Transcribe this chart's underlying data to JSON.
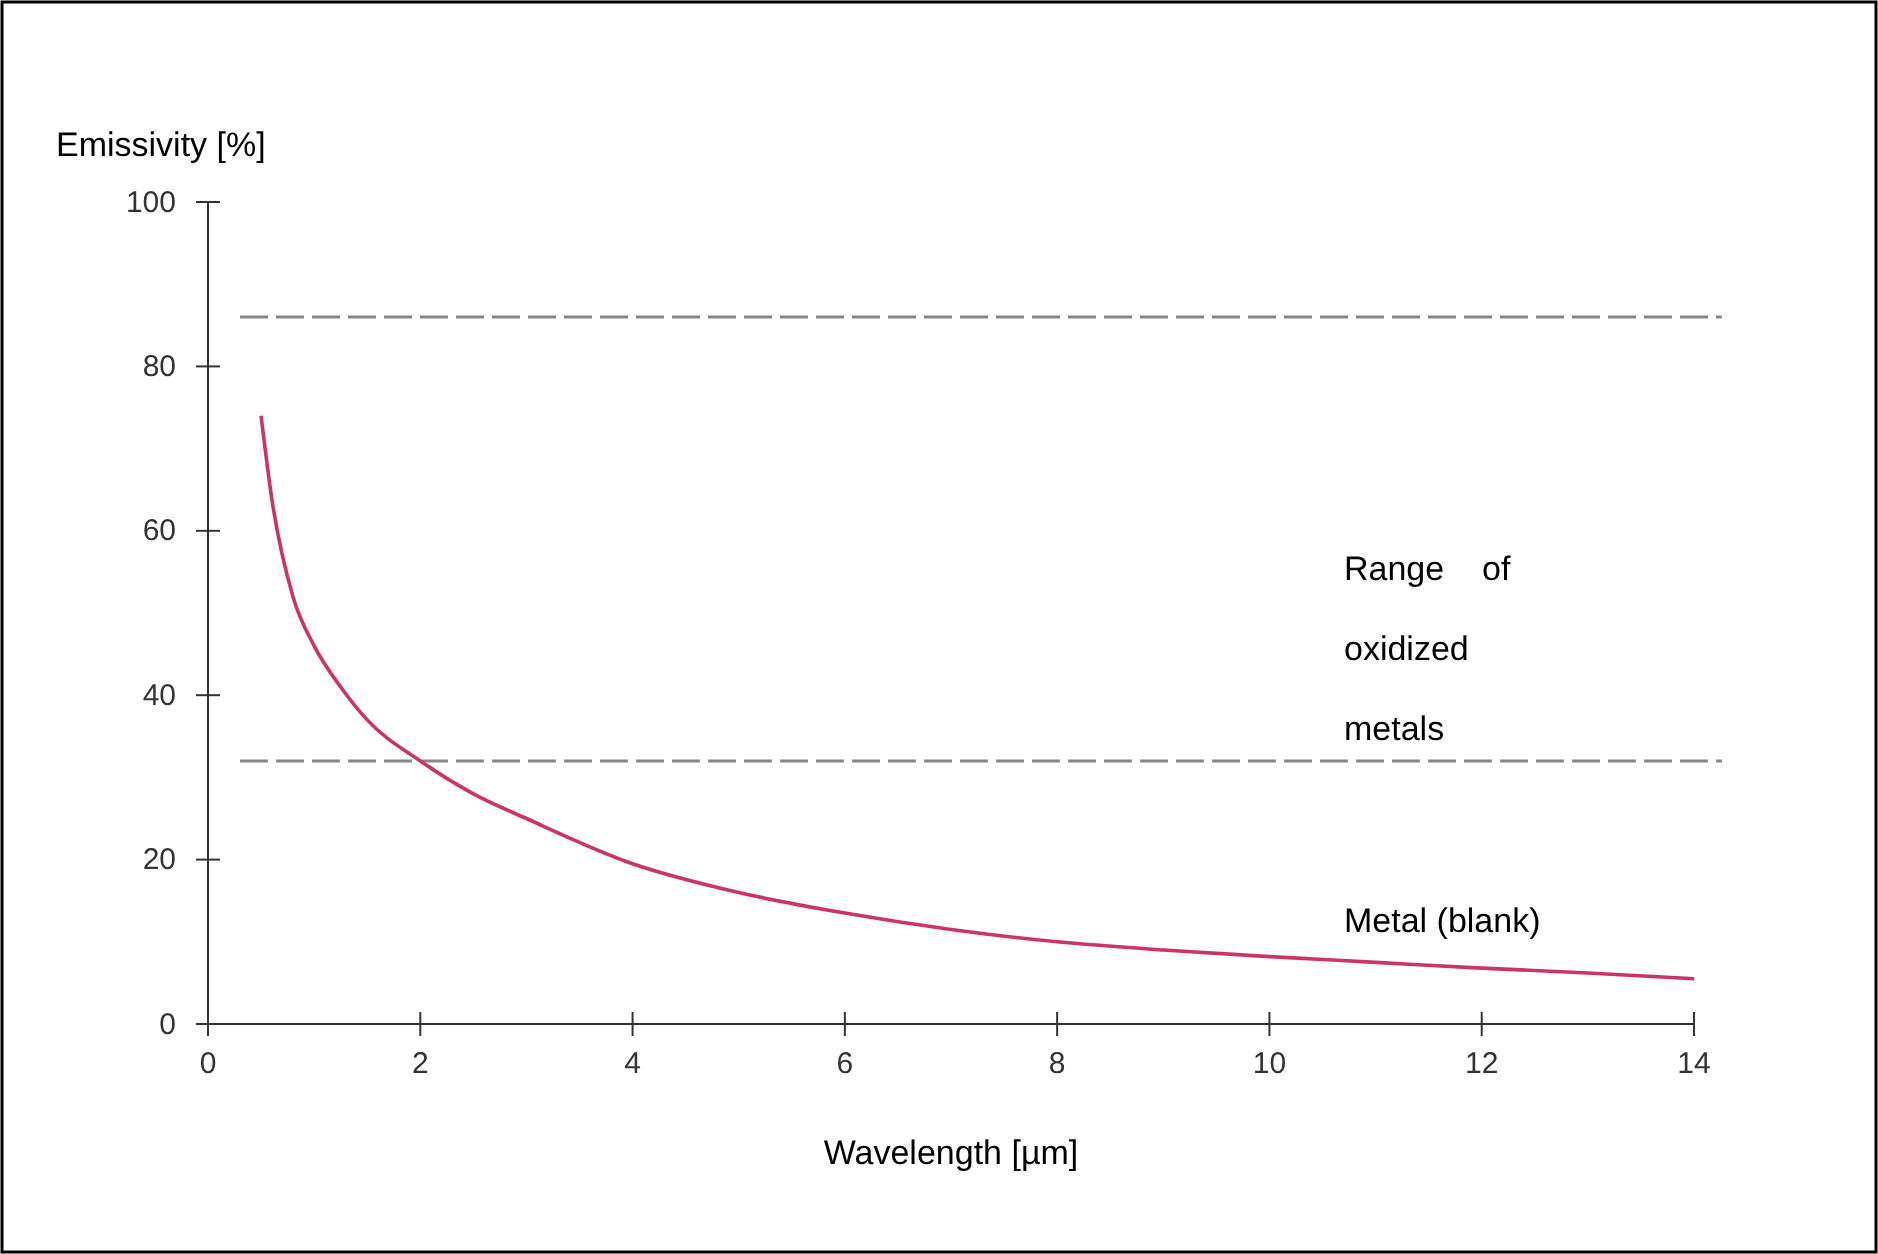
{
  "chart_data": {
    "type": "line",
    "xlabel": "Wavelength [µm]",
    "ylabel": "Emissivity [%]",
    "x": [
      0.5,
      0.6,
      0.8,
      1,
      1.25,
      1.5,
      2,
      2.5,
      3,
      4,
      5,
      6,
      7,
      8,
      9,
      10,
      11,
      12,
      13,
      14
    ],
    "series": [
      {
        "color": "#cc3366",
        "values": [
          74,
          64,
          52,
          46,
          41,
          37,
          32,
          28,
          25,
          19.5,
          16,
          13.5,
          11.5,
          10,
          9,
          8.2,
          7.5,
          6.8,
          6.2,
          5.5
        ]
      }
    ],
    "xlim": [
      0,
      14
    ],
    "xticks": [
      0,
      2,
      4,
      6,
      8,
      10,
      12,
      14
    ],
    "ylim": [
      0,
      100
    ],
    "yticks": [
      0,
      20,
      40,
      60,
      80,
      100
    ],
    "ref_lines": [
      {
        "axis": "y",
        "value": 86,
        "color": "#888888",
        "line_style": "dashed"
      },
      {
        "axis": "y",
        "value": 32,
        "color": "#888888",
        "line_style": "dashed"
      }
    ],
    "annotations": [
      "Range    of\noxidized\nmetals",
      "Metal (blank)"
    ],
    "grid": false,
    "marker": "none",
    "line_style": "solid"
  }
}
